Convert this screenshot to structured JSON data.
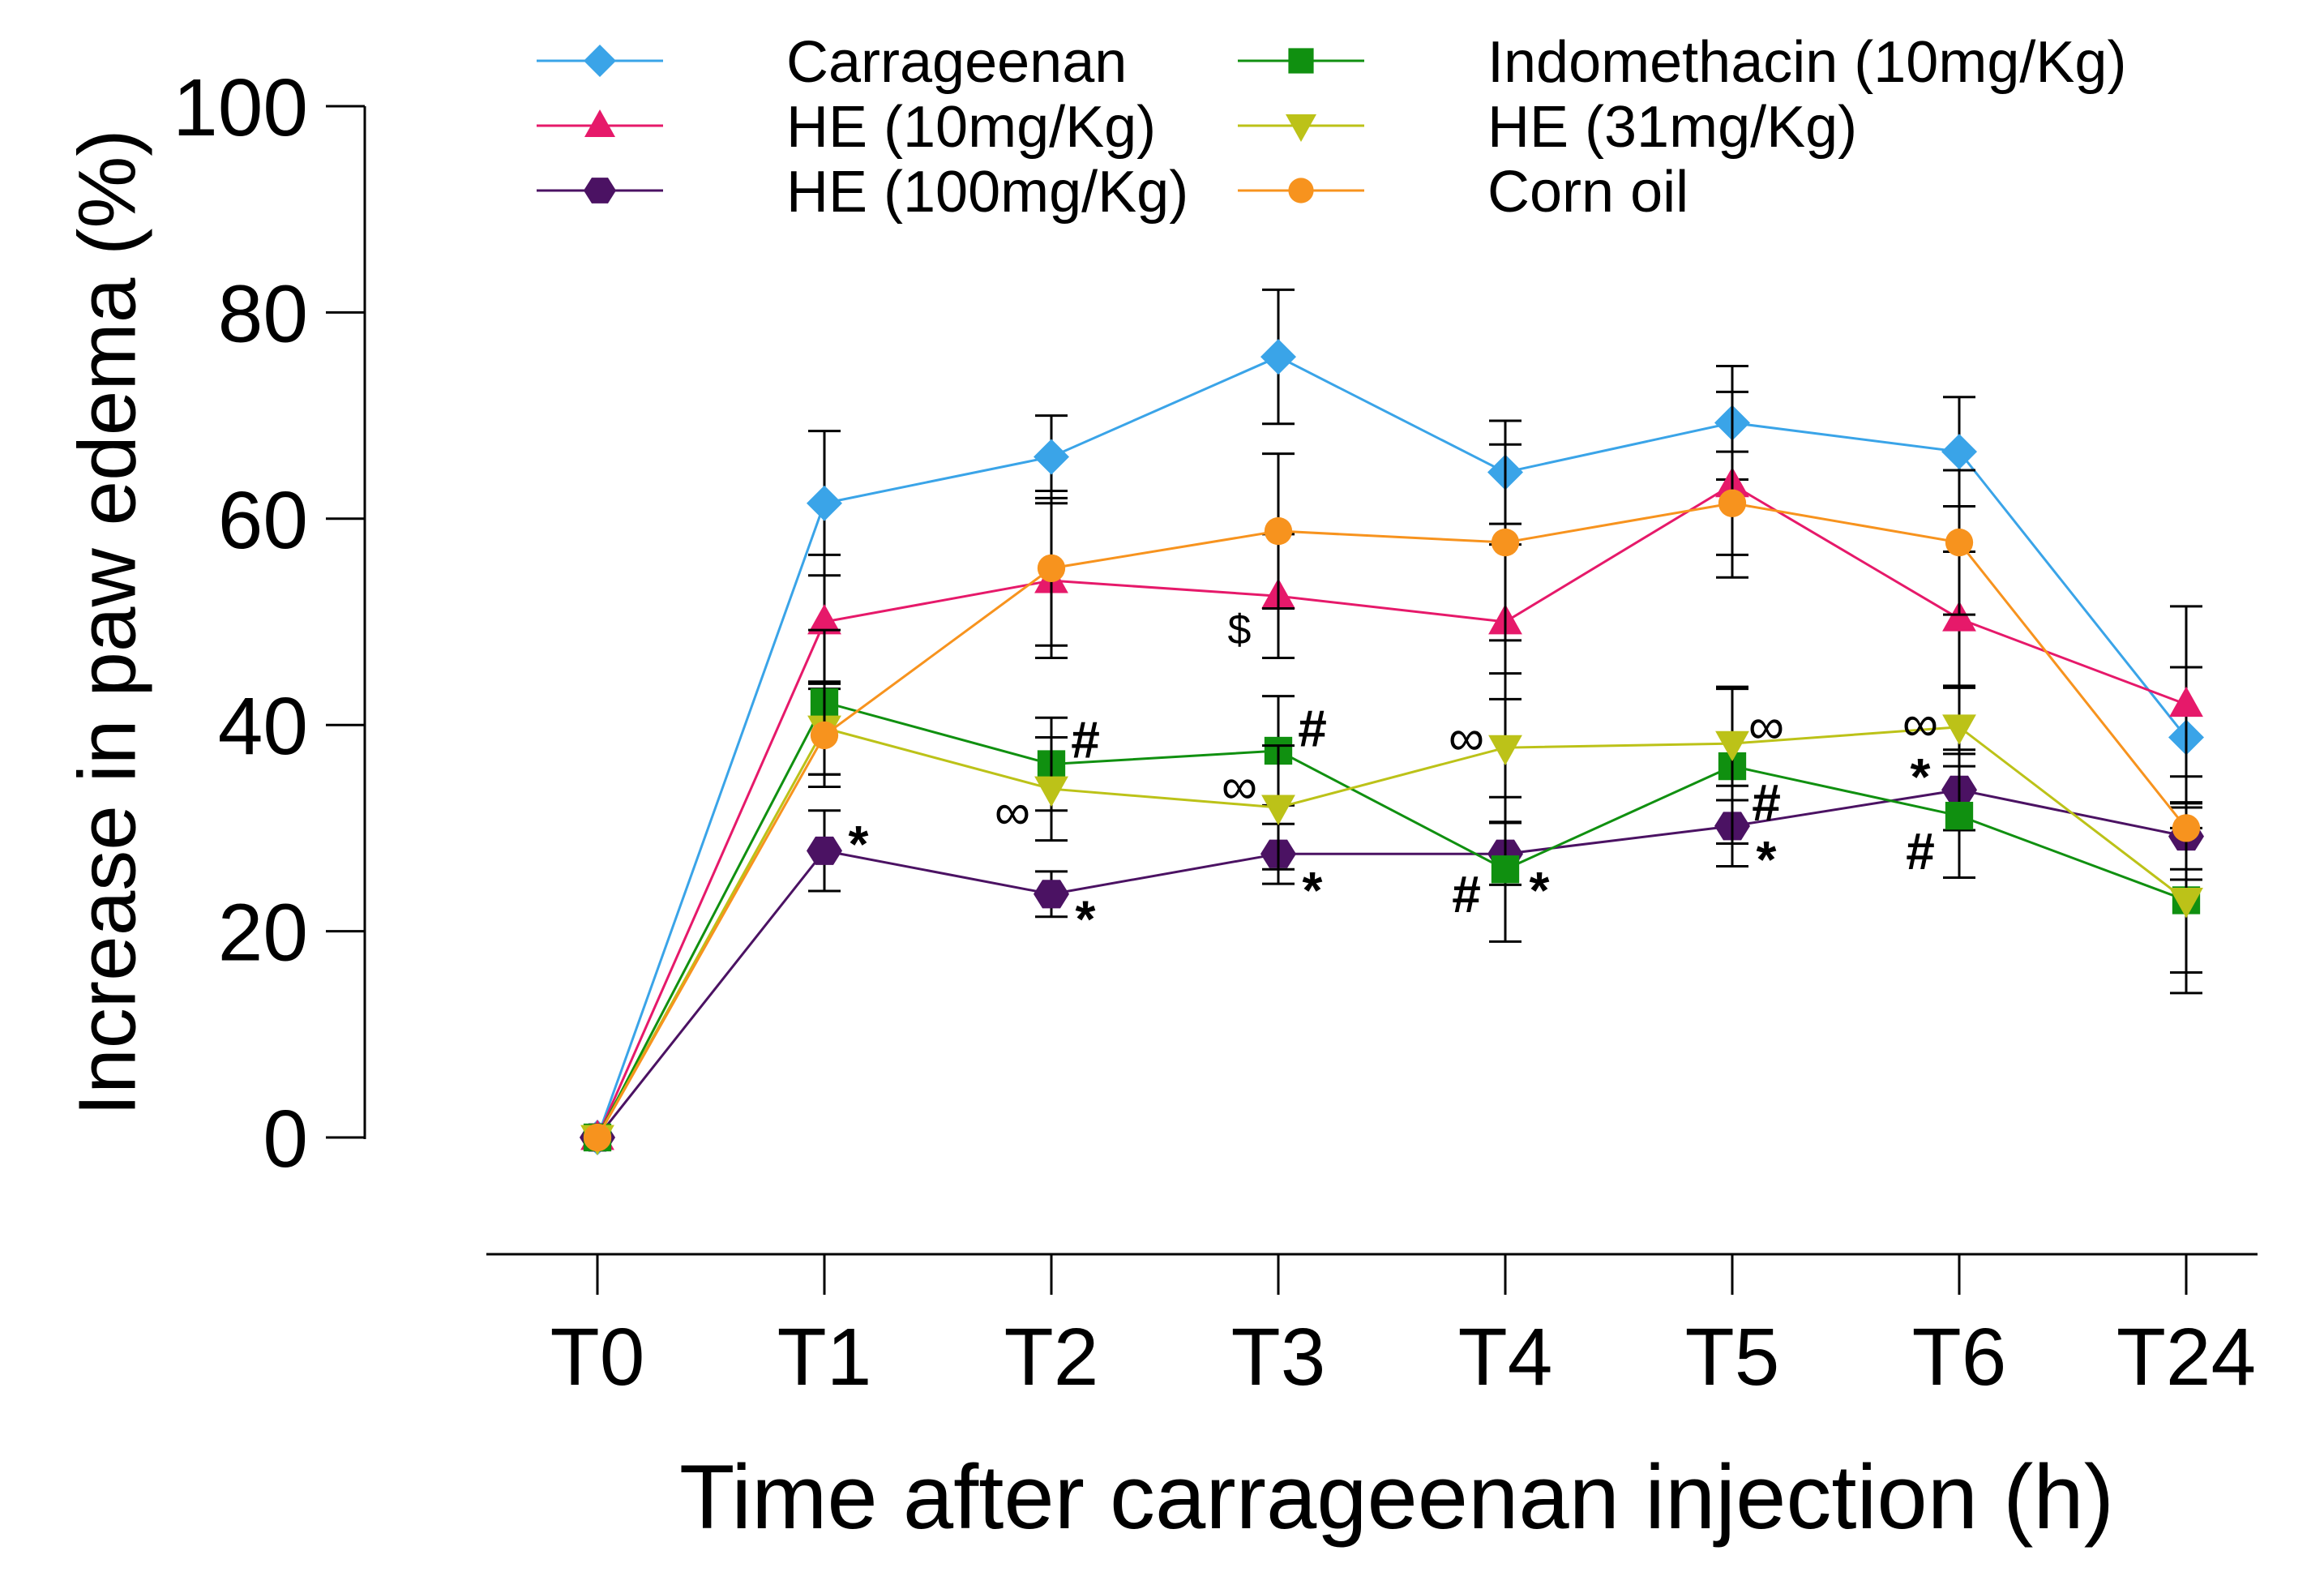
{
  "chart_data": {
    "type": "line",
    "title": "",
    "xlabel": "Time after carrageenan injection (h)",
    "ylabel": "Increase in paw edema (%)",
    "categories": [
      "T0",
      "T1",
      "T2",
      "T3",
      "T4",
      "T5",
      "T6",
      "T24"
    ],
    "ylim": [
      0,
      100
    ],
    "yticks": [
      0,
      20,
      40,
      60,
      80,
      100
    ],
    "ytick_labels": [
      "0",
      "20",
      "40",
      "60",
      "80",
      "100"
    ],
    "grid": false,
    "legend_position": "top",
    "series": [
      {
        "name": "Carrageenan",
        "color": "#3aa4e8",
        "marker": "diamond",
        "values": [
          0,
          61.5,
          66,
          75.7,
          64.5,
          69.3,
          66.5,
          38.8
        ],
        "errors": [
          0,
          7,
          4,
          6.5,
          5,
          5.5,
          5.3,
          6.8
        ]
      },
      {
        "name": "HE (10mg/Kg)",
        "color": "#e6196a",
        "marker": "triangle-up",
        "values": [
          0,
          50,
          54,
          52.5,
          50,
          63.3,
          50.3,
          42
        ],
        "errors": [
          0,
          6.5,
          7.5,
          6,
          7.5,
          9,
          6.5,
          9.5
        ]
      },
      {
        "name": "HE (100mg/Kg)",
        "color": "#4b1263",
        "marker": "hexagon",
        "values": [
          0,
          27.8,
          23.6,
          27.5,
          27.5,
          30.2,
          33.7,
          29.2
        ],
        "errors": [
          0,
          3.9,
          2.2,
          2.9,
          3,
          3.9,
          3.9,
          3.2
        ]
      },
      {
        "name": "Indomethacin (10mg/Kg)",
        "color": "#109010",
        "marker": "square",
        "values": [
          0,
          42.2,
          36.2,
          37.5,
          26,
          36,
          31.2,
          23
        ],
        "errors": [
          0,
          7,
          4.5,
          5.3,
          7,
          7.5,
          6,
          9
        ]
      },
      {
        "name": "HE (31mg/Kg)",
        "color": "#bcc218",
        "marker": "triangle-down",
        "values": [
          0,
          39.7,
          33.8,
          32,
          37.8,
          38.2,
          39.8,
          23
        ],
        "errors": [
          0,
          4.5,
          5,
          6,
          7.2,
          5.5,
          3.8,
          7
        ]
      },
      {
        "name": "Corn oil",
        "color": "#f7931e",
        "marker": "circle",
        "values": [
          0,
          39,
          55.2,
          58.8,
          57.7,
          61.5,
          57.7,
          30
        ],
        "errors": [
          0,
          5,
          7.5,
          7.5,
          9.5,
          5,
          7,
          5
        ]
      }
    ],
    "annotations": [
      {
        "text": "*",
        "category": "T1",
        "y": 28.5,
        "side": "right"
      },
      {
        "text": "*",
        "category": "T2",
        "y": 21.2,
        "side": "right"
      },
      {
        "text": "*",
        "category": "T3",
        "y": 24,
        "side": "right"
      },
      {
        "text": "*",
        "category": "T4",
        "y": 24,
        "side": "right"
      },
      {
        "text": "*",
        "category": "T5",
        "y": 27,
        "side": "right"
      },
      {
        "text": "*",
        "category": "T6",
        "y": 35,
        "side": "left"
      },
      {
        "text": "#",
        "category": "T2",
        "y": 38.6,
        "side": "right"
      },
      {
        "text": "#",
        "category": "T3",
        "y": 39.7,
        "side": "right"
      },
      {
        "text": "#",
        "category": "T4",
        "y": 23.6,
        "side": "left"
      },
      {
        "text": "#",
        "category": "T5",
        "y": 32.5,
        "side": "right"
      },
      {
        "text": "#",
        "category": "T6",
        "y": 27.8,
        "side": "left"
      },
      {
        "text": "∞",
        "category": "T2",
        "y": 31.6,
        "side": "left"
      },
      {
        "text": "∞",
        "category": "T3",
        "y": 34.1,
        "side": "left"
      },
      {
        "text": "∞",
        "category": "T4",
        "y": 38.8,
        "side": "left"
      },
      {
        "text": "∞",
        "category": "T5",
        "y": 39.9,
        "side": "right"
      },
      {
        "text": "∞",
        "category": "T6",
        "y": 40.2,
        "side": "left"
      },
      {
        "text": "$",
        "category": "T3",
        "y": 49.3,
        "side": "left"
      }
    ]
  }
}
